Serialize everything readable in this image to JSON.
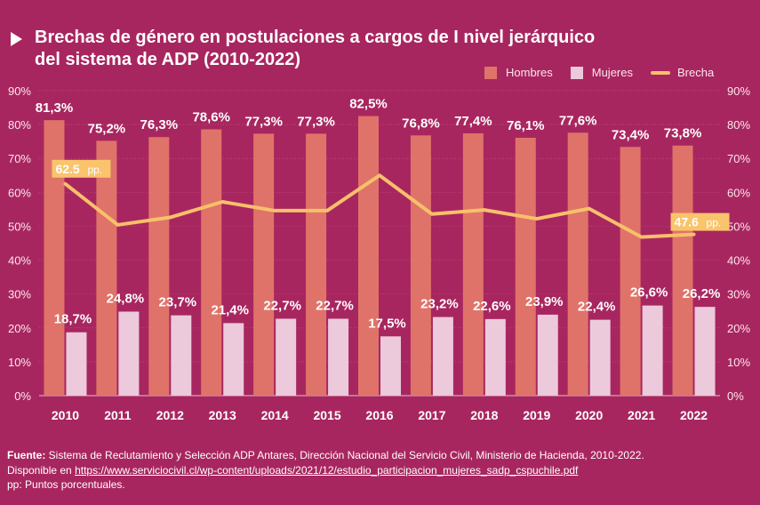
{
  "header": {
    "title": "Brechas de género en postulaciones a cargos de I nivel jerárquico del sistema de ADP (2010-2022)"
  },
  "legend": {
    "hombres": "Hombres",
    "mujeres": "Mujeres",
    "brecha": "Brecha"
  },
  "colors": {
    "background": "#a8265f",
    "hombres": "#e07369",
    "mujeres": "#ecc9db",
    "brecha": "#f7c06a",
    "badge": "#f9c46b"
  },
  "chart_data": {
    "type": "bar",
    "categories": [
      "2010",
      "2011",
      "2012",
      "2013",
      "2014",
      "2015",
      "2016",
      "2017",
      "2018",
      "2019",
      "2020",
      "2021",
      "2022"
    ],
    "series": [
      {
        "name": "Hombres",
        "values": [
          81.3,
          75.2,
          76.3,
          78.6,
          77.3,
          77.3,
          82.5,
          76.8,
          77.4,
          76.1,
          77.6,
          73.4,
          73.8
        ],
        "labels": [
          "81,3%",
          "75,2%",
          "76,3%",
          "78,6%",
          "77,3%",
          "77,3%",
          "82,5%",
          "76,8%",
          "77,4%",
          "76,1%",
          "77,6%",
          "73,4%",
          "73,8%"
        ]
      },
      {
        "name": "Mujeres",
        "values": [
          18.7,
          24.8,
          23.7,
          21.4,
          22.7,
          22.7,
          17.5,
          23.2,
          22.6,
          23.9,
          22.4,
          26.6,
          26.2
        ],
        "labels": [
          "18,7%",
          "24,8%",
          "23,7%",
          "21,4%",
          "22,7%",
          "22,7%",
          "17,5%",
          "23,2%",
          "22,6%",
          "23,9%",
          "22,4%",
          "26,6%",
          "26,2%"
        ]
      },
      {
        "name": "Brecha",
        "type": "line",
        "values": [
          62.5,
          50.4,
          52.6,
          57.2,
          54.6,
          54.6,
          65.0,
          53.6,
          54.8,
          52.2,
          55.2,
          46.8,
          47.6
        ]
      }
    ],
    "ylim": [
      0,
      90
    ],
    "yticks": [
      "0%",
      "10%",
      "20%",
      "30%",
      "40%",
      "50%",
      "60%",
      "70%",
      "80%",
      "90%"
    ],
    "annotations": [
      {
        "index": 0,
        "value": "62.5",
        "unit": "pp."
      },
      {
        "index": 12,
        "value": "47.6",
        "unit": "pp."
      }
    ]
  },
  "footer": {
    "source_label": "Fuente:",
    "source_text": " Sistema de Reclutamiento y Selección ADP Antares, Dirección Nacional del Servicio Civil, Ministerio de Hacienda, 2010-2022.",
    "availability_label": "Disponible en ",
    "availability_link": "https://www.serviciocivil.cl/wp-content/uploads/2021/12/estudio_participacion_mujeres_sadp_cspuchile.pdf",
    "note": "pp: Puntos porcentuales."
  }
}
